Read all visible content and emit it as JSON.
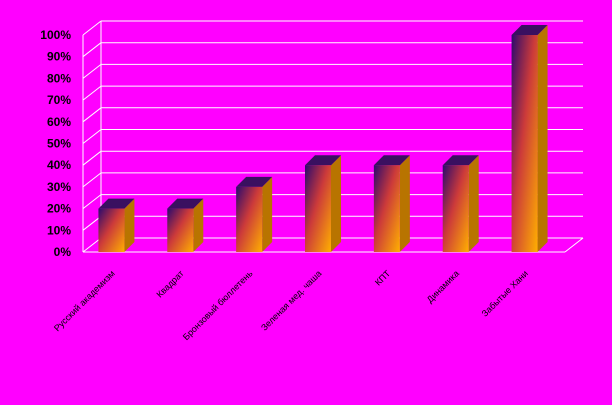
{
  "chart_data": {
    "type": "bar",
    "style": "3d-column",
    "title": "",
    "xlabel": "",
    "ylabel": "",
    "ylim": [
      0,
      100
    ],
    "ytick_format": "percent",
    "yticks": [
      "0%",
      "10%",
      "20%",
      "30%",
      "40%",
      "50%",
      "60%",
      "70%",
      "80%",
      "90%",
      "100%"
    ],
    "grid": true,
    "legend": "none",
    "categories": [
      "Русский академизм",
      "Квадрат",
      "Бронзовый бюллетень",
      "Зеленая мед. чаша",
      "КПТ",
      "Динамика",
      "Забытые Хани"
    ],
    "values": [
      20,
      20,
      30,
      40,
      40,
      40,
      100
    ]
  },
  "colors": {
    "background": "#ff00ff",
    "gridline": "#ffffff",
    "text": "#000000",
    "bar_front_start": "#2a0a6e",
    "bar_front_mid": "#cc3a3a",
    "bar_front_end": "#ffb000",
    "bar_side": "#b87400",
    "bar_top": "#3a1060"
  }
}
